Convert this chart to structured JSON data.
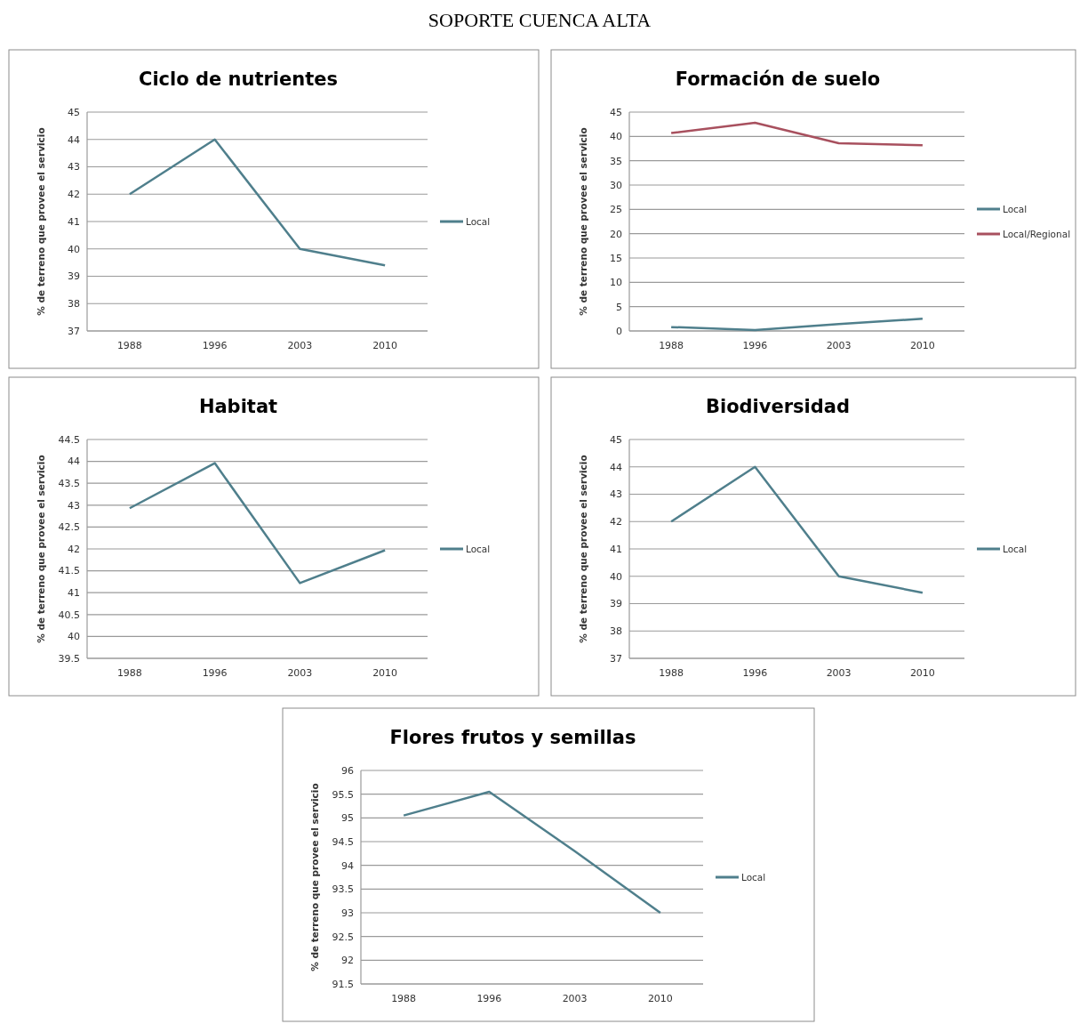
{
  "chart_data": [
    {
      "type": "other",
      "title": "SOPORTE CUENCA ALTA"
    },
    {
      "type": "line",
      "title": "Ciclo de nutrientes",
      "ylabel": "% de terreno que provee el servicio",
      "categories": [
        "1988",
        "1996",
        "2003",
        "2010"
      ],
      "series": [
        {
          "name": "Local",
          "color": "#4f7f8c",
          "values": [
            42,
            44,
            40,
            39.4
          ]
        }
      ],
      "ylim": [
        37,
        45
      ],
      "yticks": [
        37,
        38,
        39,
        40,
        41,
        42,
        43,
        44,
        45
      ],
      "grid": "y",
      "legend": "right"
    },
    {
      "type": "line",
      "title": "Formación de suelo",
      "ylabel": "% de terreno que provee el servicio",
      "categories": [
        "1988",
        "1996",
        "2003",
        "2010"
      ],
      "series": [
        {
          "name": "Local",
          "color": "#4f7f8c",
          "values": [
            0.8,
            0.2,
            1.4,
            2.5
          ]
        },
        {
          "name": "Local/Regional",
          "color": "#a8505e",
          "values": [
            40.7,
            42.8,
            38.6,
            38.2
          ]
        }
      ],
      "ylim": [
        0,
        45
      ],
      "yticks": [
        0,
        5,
        10,
        15,
        20,
        25,
        30,
        35,
        40,
        45
      ],
      "grid": "y",
      "legend": "right"
    },
    {
      "type": "line",
      "title": "Habitat",
      "ylabel": "% de terreno que provee el servicio",
      "categories": [
        "1988",
        "1996",
        "2003",
        "2010"
      ],
      "series": [
        {
          "name": "Local",
          "color": "#4f7f8c",
          "values": [
            42.93,
            43.96,
            41.22,
            41.97
          ]
        }
      ],
      "ylim": [
        39.5,
        44.5
      ],
      "yticks": [
        39.5,
        40,
        40.5,
        41,
        41.5,
        42,
        42.5,
        43,
        43.5,
        44,
        44.5
      ],
      "grid": "y",
      "legend": "right"
    },
    {
      "type": "line",
      "title": "Biodiversidad",
      "ylabel": "% de terreno que provee el servicio",
      "categories": [
        "1988",
        "1996",
        "2003",
        "2010"
      ],
      "series": [
        {
          "name": "Local",
          "color": "#4f7f8c",
          "values": [
            42,
            44,
            40,
            39.4
          ]
        }
      ],
      "ylim": [
        37,
        45
      ],
      "yticks": [
        37,
        38,
        39,
        40,
        41,
        42,
        43,
        44,
        45
      ],
      "grid": "y",
      "legend": "right"
    },
    {
      "type": "line",
      "title": "Flores frutos y semillas",
      "ylabel": "% de terreno que provee el servicio",
      "categories": [
        "1988",
        "1996",
        "2003",
        "2010"
      ],
      "series": [
        {
          "name": "Local",
          "color": "#4f7f8c",
          "values": [
            95.05,
            95.55,
            94.3,
            93
          ]
        }
      ],
      "ylim": [
        91.5,
        96
      ],
      "yticks": [
        91.5,
        92,
        92.5,
        93,
        93.5,
        94,
        94.5,
        95,
        95.5,
        96
      ],
      "grid": "y",
      "legend": "right"
    }
  ]
}
